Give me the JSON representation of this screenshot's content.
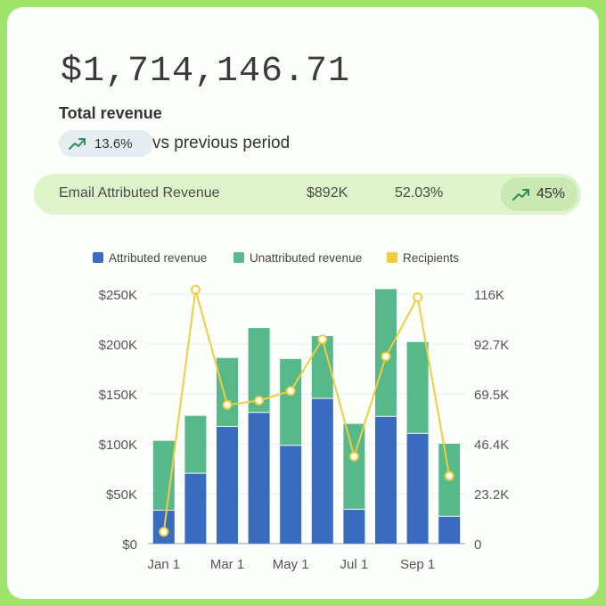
{
  "summary": {
    "total_revenue": "$1,714,146.71",
    "total_label": "Total revenue",
    "change_pct": "13.6%",
    "change_text": "vs previous period"
  },
  "email_row": {
    "label": "Email Attributed Revenue",
    "amount": "$892K",
    "share": "52.03%",
    "change": "45%"
  },
  "colors": {
    "attributed": "#3a6bbf",
    "unattributed": "#57b98a",
    "recipients": "#f0cc3f",
    "trend_icon": "#2f8a5c"
  },
  "chart_data": {
    "type": "bar",
    "stacked": true,
    "title": "",
    "legend": [
      "Attributed revenue",
      "Unattributed revenue",
      "Recipients"
    ],
    "legend_position": "top",
    "x_tick_labels": [
      "Jan 1",
      "Mar 1",
      "May 1",
      "Jul 1",
      "Sep 1"
    ],
    "y_left_ticks": [
      "$0",
      "$50K",
      "$100K",
      "$150K",
      "$200K",
      "$250K"
    ],
    "y_right_ticks": [
      "0",
      "23.2K",
      "46.4K",
      "69.5K",
      "92.7K",
      "116K"
    ],
    "y_left_range": [
      0,
      250000
    ],
    "y_right_range": [
      0,
      116000
    ],
    "grid": true,
    "series": [
      {
        "name": "Attributed revenue",
        "values": [
          33000,
          70000,
          117000,
          131000,
          98000,
          145000,
          34000,
          127000,
          110000,
          27000
        ]
      },
      {
        "name": "Unattributed revenue",
        "values": [
          70000,
          58000,
          69000,
          85000,
          87000,
          63000,
          86000,
          128000,
          92000,
          73000
        ]
      },
      {
        "name": "Recipients",
        "axis": "right",
        "type": "line",
        "values": [
          5500,
          118000,
          64500,
          66500,
          71000,
          95000,
          40500,
          87000,
          114500,
          31500
        ]
      }
    ]
  }
}
